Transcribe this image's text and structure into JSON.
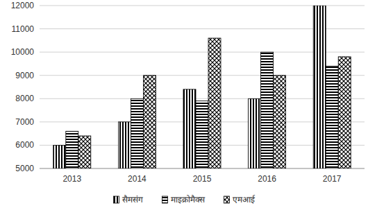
{
  "chart_data": {
    "type": "bar",
    "categories": [
      "2013",
      "2014",
      "2015",
      "2016",
      "2017"
    ],
    "series": [
      {
        "name": "सैमसंग",
        "color": "#000000",
        "values": [
          6000,
          7000,
          8400,
          8000,
          12000
        ]
      },
      {
        "name": "माइक्रोमैक्स",
        "color": "#000000",
        "values": [
          6600,
          8000,
          7900,
          10000,
          9400
        ]
      },
      {
        "name": "एमआई",
        "color": "#000000",
        "values": [
          6400,
          9000,
          10600,
          9000,
          9800
        ]
      }
    ],
    "ylim": [
      5000,
      12000
    ],
    "yticks": [
      5000,
      6000,
      7000,
      8000,
      9000,
      10000,
      11000,
      12000
    ],
    "grid": true,
    "legend": "bottom"
  }
}
